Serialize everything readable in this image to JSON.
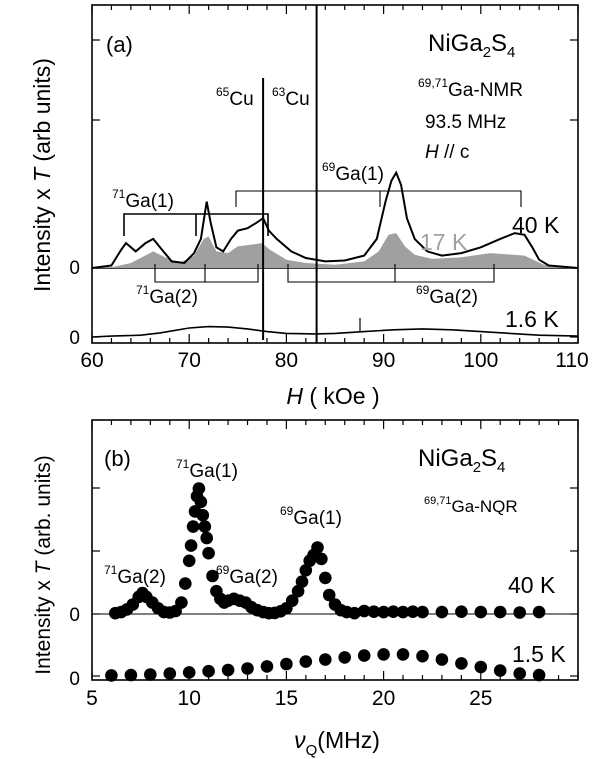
{
  "chart_data": [
    {
      "type": "line",
      "panel_label": "(a)",
      "compound": {
        "main": "NiGa",
        "sub1": "2",
        "mid": "S",
        "sub2": "4"
      },
      "nucleus_note": {
        "sup": "69,71",
        "main": "Ga-NMR"
      },
      "frequency": "93.5 MHz",
      "field_dir": {
        "italic": "H",
        "rest": " // c"
      },
      "xlabel": {
        "italic": "H",
        "rest": " ( kOe )"
      },
      "ylabel": {
        "pre": "Intensity x ",
        "italic": "T",
        "post": " (arb units)"
      },
      "xlim": [
        60,
        110
      ],
      "xticks": [
        "60",
        "70",
        "80",
        "90",
        "100",
        "110"
      ],
      "zero_labels": [
        "0",
        "0"
      ],
      "peak_labels": {
        "cu65": {
          "sup": "65",
          "main": "Cu"
        },
        "cu63": {
          "sup": "63",
          "main": "Cu"
        },
        "ga71_1": {
          "sup": "71",
          "main": "Ga(1)"
        },
        "ga69_1": {
          "sup": "69",
          "main": "Ga(1)"
        },
        "ga71_2": {
          "sup": "71",
          "main": "Ga(2)"
        },
        "ga69_2": {
          "sup": "69",
          "main": "Ga(2)"
        }
      },
      "series": [
        {
          "name": "40 K",
          "color": "#000000",
          "baseline": 1.0,
          "x": [
            60,
            62,
            63,
            63.5,
            64.5,
            65.5,
            66.3,
            67.2,
            68.2,
            69.5,
            70.5,
            71.2,
            71.8,
            72.2,
            72.8,
            73.5,
            74.3,
            75,
            76,
            77,
            77.6,
            78.2,
            79,
            80.5,
            82,
            83,
            84,
            86,
            88,
            89.3,
            90.2,
            90.8,
            91.3,
            91.8,
            92.4,
            93.2,
            94.5,
            96,
            98,
            100,
            102,
            103.5,
            104.5,
            105.3,
            106,
            107,
            110
          ],
          "y": [
            0,
            0.3,
            2.2,
            3.0,
            2.0,
            3.0,
            3.5,
            2.2,
            0.8,
            0.6,
            1.8,
            3.5,
            8.0,
            5.5,
            2.5,
            2.0,
            3.5,
            4.5,
            4.8,
            5.5,
            6.0,
            4.5,
            3.5,
            2.0,
            1.2,
            1.0,
            0.8,
            0.9,
            1.5,
            3.5,
            8.0,
            10.5,
            11.5,
            10.0,
            6.0,
            3.5,
            2.0,
            1.5,
            1.8,
            2.5,
            3.5,
            4.2,
            4.0,
            2.5,
            1.0,
            0.3,
            0.0
          ]
        },
        {
          "name": "17 K",
          "color": "#a0a0a0",
          "baseline": 1.0,
          "x": [
            60,
            62,
            64,
            66.3,
            67.5,
            69,
            70.5,
            71.5,
            72,
            72.8,
            74,
            75,
            76.3,
            77.5,
            78.3,
            80,
            82,
            85,
            88,
            89.5,
            90.5,
            91.3,
            92.2,
            93.2,
            95,
            98,
            101,
            104.5,
            106.5,
            110
          ],
          "y": [
            0,
            0.1,
            0.6,
            2.0,
            1.3,
            0.6,
            1.5,
            3.5,
            3.8,
            2.0,
            1.8,
            2.6,
            2.8,
            3.0,
            2.2,
            1.0,
            0.6,
            0.4,
            0.8,
            2.0,
            4.0,
            4.2,
            2.6,
            1.6,
            1.1,
            1.3,
            1.8,
            1.5,
            0.4,
            0.0
          ]
        },
        {
          "name": "1.6 K",
          "color": "#000000",
          "baseline": 0.0,
          "x": [
            60,
            62,
            65,
            67,
            70,
            72,
            74,
            76,
            78,
            80,
            83,
            85,
            88,
            91,
            94,
            97,
            100,
            103,
            106,
            110
          ],
          "y": [
            0,
            0.1,
            0.2,
            0.45,
            1.0,
            1.15,
            1.1,
            0.9,
            0.6,
            0.4,
            0.35,
            0.4,
            0.6,
            0.8,
            0.9,
            0.8,
            0.6,
            0.4,
            0.2,
            0.1
          ]
        }
      ]
    },
    {
      "type": "scatter",
      "panel_label": "(b)",
      "compound": {
        "main": "NiGa",
        "sub1": "2",
        "mid": "S",
        "sub2": "4"
      },
      "nucleus_note": {
        "sup": "69,71",
        "main": "Ga-NQR"
      },
      "xlabel": {
        "greek": "ν",
        "sub": "Q",
        "rest": "(MHz)"
      },
      "ylabel": {
        "pre": "Intensity x ",
        "italic": "T",
        "post": " (arb. units)"
      },
      "xlim": [
        5,
        30
      ],
      "xticks": [
        "5",
        "10",
        "15",
        "20",
        "25"
      ],
      "zero_labels": [
        "0",
        "0"
      ],
      "peak_labels": {
        "ga71_1": {
          "sup": "71",
          "main": "Ga(1)"
        },
        "ga69_1": {
          "sup": "69",
          "main": "Ga(1)"
        },
        "ga71_2": {
          "sup": "71",
          "main": "Ga(2)"
        },
        "ga69_2": {
          "sup": "69",
          "main": "Ga(2)"
        }
      },
      "series": [
        {
          "name": "40 K",
          "baseline": 1.0,
          "x": [
            6.2,
            6.5,
            6.8,
            7.1,
            7.4,
            7.6,
            7.8,
            8.1,
            8.4,
            8.7,
            9.0,
            9.3,
            9.6,
            9.8,
            10.0,
            10.1,
            10.2,
            10.3,
            10.4,
            10.5,
            10.6,
            10.7,
            10.8,
            10.9,
            11.0,
            11.2,
            11.4,
            11.6,
            11.8,
            12.0,
            12.3,
            12.6,
            12.9,
            13.2,
            13.5,
            13.8,
            14.1,
            14.4,
            14.7,
            15.0,
            15.3,
            15.6,
            15.8,
            16.0,
            16.2,
            16.4,
            16.6,
            16.8,
            17.0,
            17.2,
            17.5,
            17.8,
            18.1,
            18.5,
            19.0,
            19.5,
            20.0,
            20.5,
            21.0,
            21.5,
            22.0,
            23.0,
            24.0,
            25.0,
            26.0,
            27.0,
            28.0
          ],
          "y": [
            0.02,
            0.05,
            0.12,
            0.25,
            0.45,
            0.55,
            0.45,
            0.3,
            0.15,
            0.05,
            0.04,
            0.08,
            0.3,
            0.8,
            1.4,
            1.8,
            2.3,
            2.7,
            3.1,
            3.3,
            2.95,
            2.6,
            2.3,
            2.0,
            1.6,
            1.0,
            0.6,
            0.4,
            0.3,
            0.35,
            0.4,
            0.35,
            0.3,
            0.18,
            0.1,
            0.05,
            0.02,
            0.03,
            0.07,
            0.15,
            0.35,
            0.6,
            0.85,
            1.15,
            1.4,
            1.55,
            1.75,
            1.45,
            0.95,
            0.5,
            0.25,
            0.1,
            0.05,
            0.02,
            0.08,
            0.06,
            0.05,
            0.06,
            0.05,
            0.06,
            0.05,
            0.05,
            0.06,
            0.05,
            0.05,
            0.04,
            0.05
          ]
        },
        {
          "name": "1.5 K",
          "baseline": 0.0,
          "x": [
            6,
            7,
            8,
            9,
            10,
            11,
            12,
            13,
            14,
            15,
            16,
            17,
            18,
            19,
            20,
            21,
            22,
            23,
            24,
            25,
            26,
            27,
            28
          ],
          "y": [
            0.02,
            0.03,
            0.05,
            0.08,
            0.12,
            0.16,
            0.2,
            0.25,
            0.32,
            0.4,
            0.48,
            0.55,
            0.62,
            0.68,
            0.72,
            0.72,
            0.66,
            0.55,
            0.42,
            0.3,
            0.18,
            0.08,
            0.03
          ]
        }
      ]
    }
  ]
}
